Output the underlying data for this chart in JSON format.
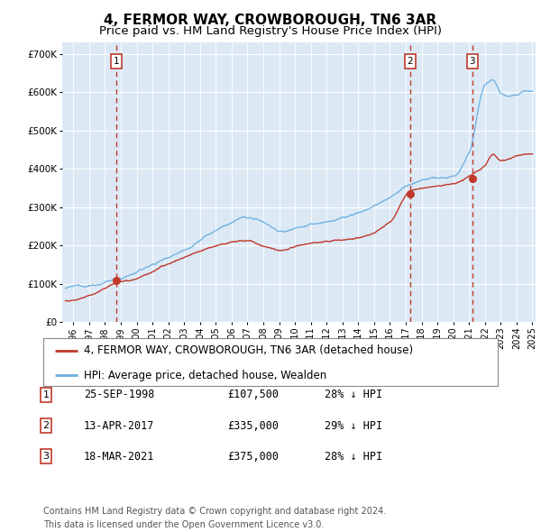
{
  "title": "4, FERMOR WAY, CROWBOROUGH, TN6 3AR",
  "subtitle": "Price paid vs. HM Land Registry's House Price Index (HPI)",
  "ylabel_ticks": [
    "£0",
    "£100K",
    "£200K",
    "£300K",
    "£400K",
    "£500K",
    "£600K",
    "£700K"
  ],
  "ytick_values": [
    0,
    100000,
    200000,
    300000,
    400000,
    500000,
    600000,
    700000
  ],
  "ylim": [
    0,
    730000
  ],
  "xlim_start": 1995.3,
  "xlim_end": 2025.2,
  "plot_bg": "#dce9f5",
  "grid_color": "#ffffff",
  "hpi_color": "#6aaee0",
  "price_color": "#c0392b",
  "vline_color": "#c0392b",
  "sale_dates": [
    1998.73,
    2017.28,
    2021.21
  ],
  "sale_prices": [
    107500,
    335000,
    375000
  ],
  "sale_labels": [
    "1",
    "2",
    "3"
  ],
  "legend_label_red": "4, FERMOR WAY, CROWBOROUGH, TN6 3AR (detached house)",
  "legend_label_blue": "HPI: Average price, detached house, Wealden",
  "table_rows": [
    [
      "1",
      "25-SEP-1998",
      "£107,500",
      "28% ↓ HPI"
    ],
    [
      "2",
      "13-APR-2017",
      "£335,000",
      "29% ↓ HPI"
    ],
    [
      "3",
      "18-MAR-2021",
      "£375,000",
      "28% ↓ HPI"
    ]
  ],
  "footer": "Contains HM Land Registry data © Crown copyright and database right 2024.\nThis data is licensed under the Open Government Licence v3.0.",
  "title_fontsize": 11,
  "subtitle_fontsize": 9.5,
  "axis_fontsize": 7.5,
  "legend_fontsize": 8.5,
  "table_fontsize": 8.5,
  "footer_fontsize": 7,
  "xtick_years": [
    1996,
    1997,
    1998,
    1999,
    2000,
    2001,
    2002,
    2003,
    2004,
    2005,
    2006,
    2007,
    2008,
    2009,
    2010,
    2011,
    2012,
    2013,
    2014,
    2015,
    2016,
    2017,
    2018,
    2019,
    2020,
    2021,
    2022,
    2023,
    2024,
    2025
  ]
}
